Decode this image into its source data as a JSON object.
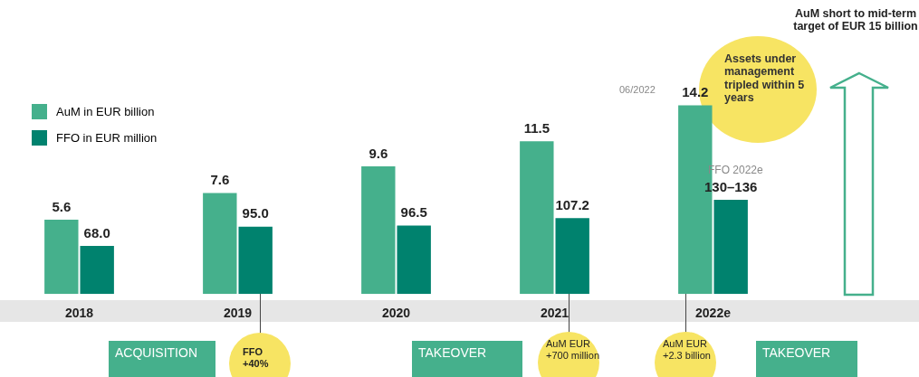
{
  "chart_data": {
    "type": "bar",
    "categories": [
      "2018",
      "2019",
      "2020",
      "2021",
      "2022e"
    ],
    "series": [
      {
        "name": "AuM in EUR billion",
        "color": "#45b08c",
        "values": [
          5.6,
          7.6,
          9.6,
          11.5,
          14.2
        ],
        "value_labels": [
          "5.6",
          "7.6",
          "9.6",
          "11.5",
          "14.2"
        ]
      },
      {
        "name": "FFO in EUR million",
        "color": "#00826e",
        "axis": "y2",
        "values": [
          68.0,
          95.0,
          96.5,
          107.2,
          133
        ],
        "value_labels": [
          "68.0",
          "95.0",
          "96.5",
          "107.2",
          "130–136"
        ]
      }
    ],
    "legend": "top left",
    "tick_labels": "x",
    "annotations": [
      "06/2022",
      "Assets under management tripled within 5 years",
      "FFO 2022e",
      "AuM short to mid-term target of EUR 15 billion",
      "ACQUISITION",
      "FFO +40%",
      "TAKEOVER",
      "AuM EUR +700 million",
      "AuM EUR +2.3 billion",
      "TAKEOVER"
    ]
  }
}
